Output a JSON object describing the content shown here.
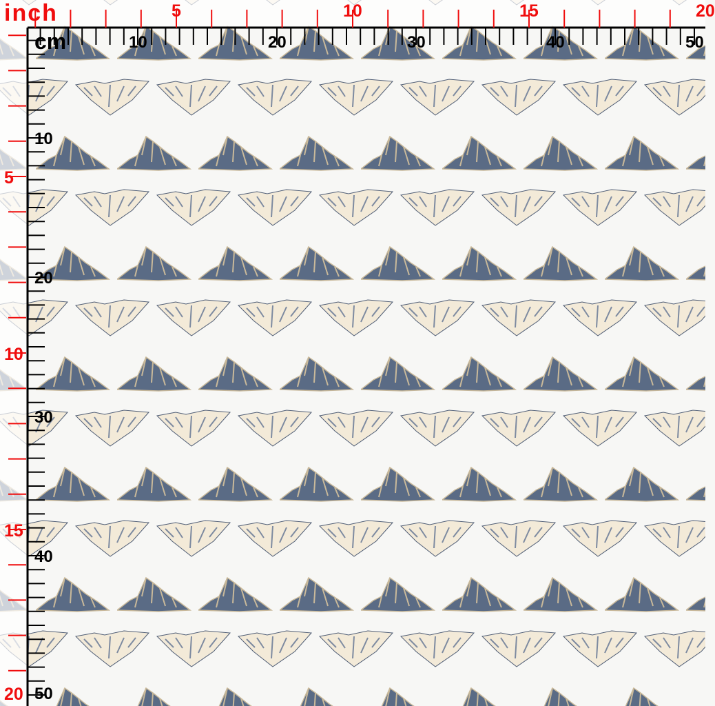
{
  "colors": {
    "dark_mountain": "#5a6b85",
    "light_mountain": "#f3ead8",
    "inch_ruler": "#f00d0d",
    "cm_ruler": "#000000",
    "fabric": "#f7f7f5"
  },
  "rulers": {
    "inch": {
      "unit": "inch",
      "top_labels": [
        "5",
        "10",
        "15",
        "20"
      ],
      "left_labels": [
        "5",
        "10",
        "15",
        "20"
      ]
    },
    "cm": {
      "unit": "cm",
      "top_labels": [
        "10",
        "20",
        "30",
        "40",
        "50"
      ],
      "left_labels": [
        "10",
        "20",
        "30",
        "40",
        "50"
      ]
    }
  }
}
